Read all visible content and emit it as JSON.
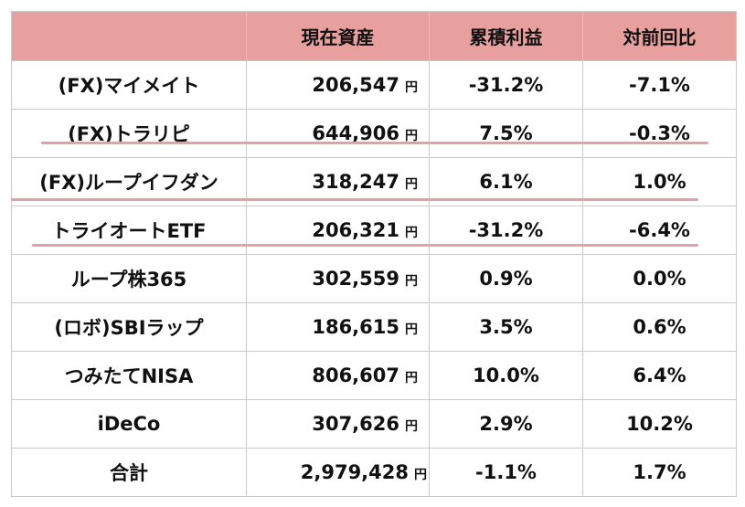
{
  "header": [
    "",
    "現在資産",
    "累積利益",
    "対前回比"
  ],
  "unit": "円",
  "rows": [
    {
      "name": "(FX)マイメイト",
      "value": "206,547",
      "cum": "-31.2%",
      "prev": "-7.1%"
    },
    {
      "name": "(FX)トラリピ",
      "value": "644,906",
      "cum": "7.5%",
      "prev": "-0.3%"
    },
    {
      "name": "(FX)ループイフダン",
      "value": "318,247",
      "cum": "6.1%",
      "prev": "1.0%"
    },
    {
      "name": "トライオートETF",
      "value": "206,321",
      "cum": "-31.2%",
      "prev": "-6.4%"
    },
    {
      "name": "ループ株365",
      "value": "302,559",
      "cum": "0.9%",
      "prev": "0.0%"
    },
    {
      "name": "(ロボ)SBIラップ",
      "value": "186,615",
      "cum": "3.5%",
      "prev": "0.6%"
    },
    {
      "name": "つみたてNISA",
      "value": "806,607",
      "cum": "10.0%",
      "prev": "6.4%"
    },
    {
      "name": "iDeCo",
      "value": "307,626",
      "cum": "2.9%",
      "prev": "10.2%"
    }
  ],
  "total": {
    "name": "合計",
    "value": "2,979,428",
    "cum": "-1.1%",
    "prev": "1.7%"
  },
  "colors": {
    "header_bg": "#e8a09f",
    "underline": "#e3a0a5",
    "border": "#c9c9c9"
  }
}
